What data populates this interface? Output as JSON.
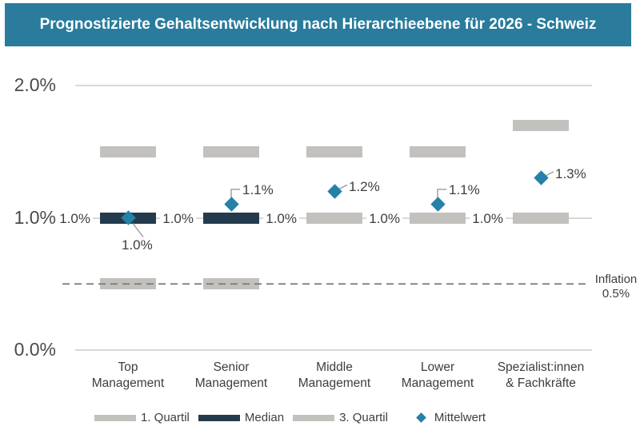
{
  "header": {
    "title": "Prognostizierte Gehaltsentwicklung nach Hierarchieebene für 2026 - Schweiz"
  },
  "colors": {
    "header_bg": "#2A7B9C",
    "median": "#233B4D",
    "quartile": "#C3C1BE",
    "mean": "#2581A8",
    "grid": "#D9D9D9",
    "dash": "#7A7A7A",
    "text": "#3E3E3E"
  },
  "chart_data": {
    "type": "bar",
    "title": "Prognostizierte Gehaltsentwicklung nach Hierarchieebene für 2026 - Schweiz",
    "xlabel": "",
    "ylabel": "",
    "ylim": [
      0,
      2.17
    ],
    "grid": "horizontal",
    "y_ticks": [
      {
        "value": 0.0,
        "label": "0.0%"
      },
      {
        "value": 1.0,
        "label": "1.0%"
      },
      {
        "value": 2.0,
        "label": "2.0%"
      }
    ],
    "categories": [
      {
        "name": "Top Management",
        "name_lines": [
          "Top",
          "Management"
        ]
      },
      {
        "name": "Senior Management",
        "name_lines": [
          "Senior",
          "Management"
        ]
      },
      {
        "name": "Middle Management",
        "name_lines": [
          "Middle",
          "Management"
        ]
      },
      {
        "name": "Lower Management",
        "name_lines": [
          "Lower",
          "Management"
        ]
      },
      {
        "name": "Spezialist:innen & Fachkräfte",
        "name_lines": [
          "Spezialist:innen",
          "& Fachkräfte"
        ]
      }
    ],
    "series": [
      {
        "name": "1. Quartil",
        "style": "quartile",
        "values": [
          0.5,
          0.5,
          1.0,
          1.0,
          1.0
        ]
      },
      {
        "name": "Median",
        "style": "median",
        "values": [
          1.0,
          1.0,
          1.0,
          1.0,
          1.0
        ]
      },
      {
        "name": "3. Quartil",
        "style": "quartile",
        "values": [
          1.5,
          1.5,
          1.5,
          1.5,
          1.7
        ]
      },
      {
        "name": "Mittelwert",
        "style": "mean",
        "values": [
          1.0,
          1.1,
          1.2,
          1.1,
          1.3
        ]
      }
    ],
    "median_labels": [
      "1.0%",
      "1.0%",
      "1.0%",
      "1.0%",
      "1.0%"
    ],
    "mean_labels": [
      "1.0%",
      "1.1%",
      "1.2%",
      "1.1%",
      "1.3%"
    ],
    "mean_label_placement": [
      "below-right",
      "above-elbow",
      "right-diag",
      "above-elbow",
      "right-diag"
    ],
    "annotation": {
      "label_line1": "Inflation",
      "label_line2": "0.5%",
      "value": 0.5
    }
  },
  "legend": {
    "items": [
      {
        "label": "1. Quartil",
        "swatch": "quartile"
      },
      {
        "label": "Median",
        "swatch": "median"
      },
      {
        "label": "3. Quartil",
        "swatch": "quartile"
      },
      {
        "label": "Mittelwert",
        "swatch": "mean"
      }
    ]
  }
}
